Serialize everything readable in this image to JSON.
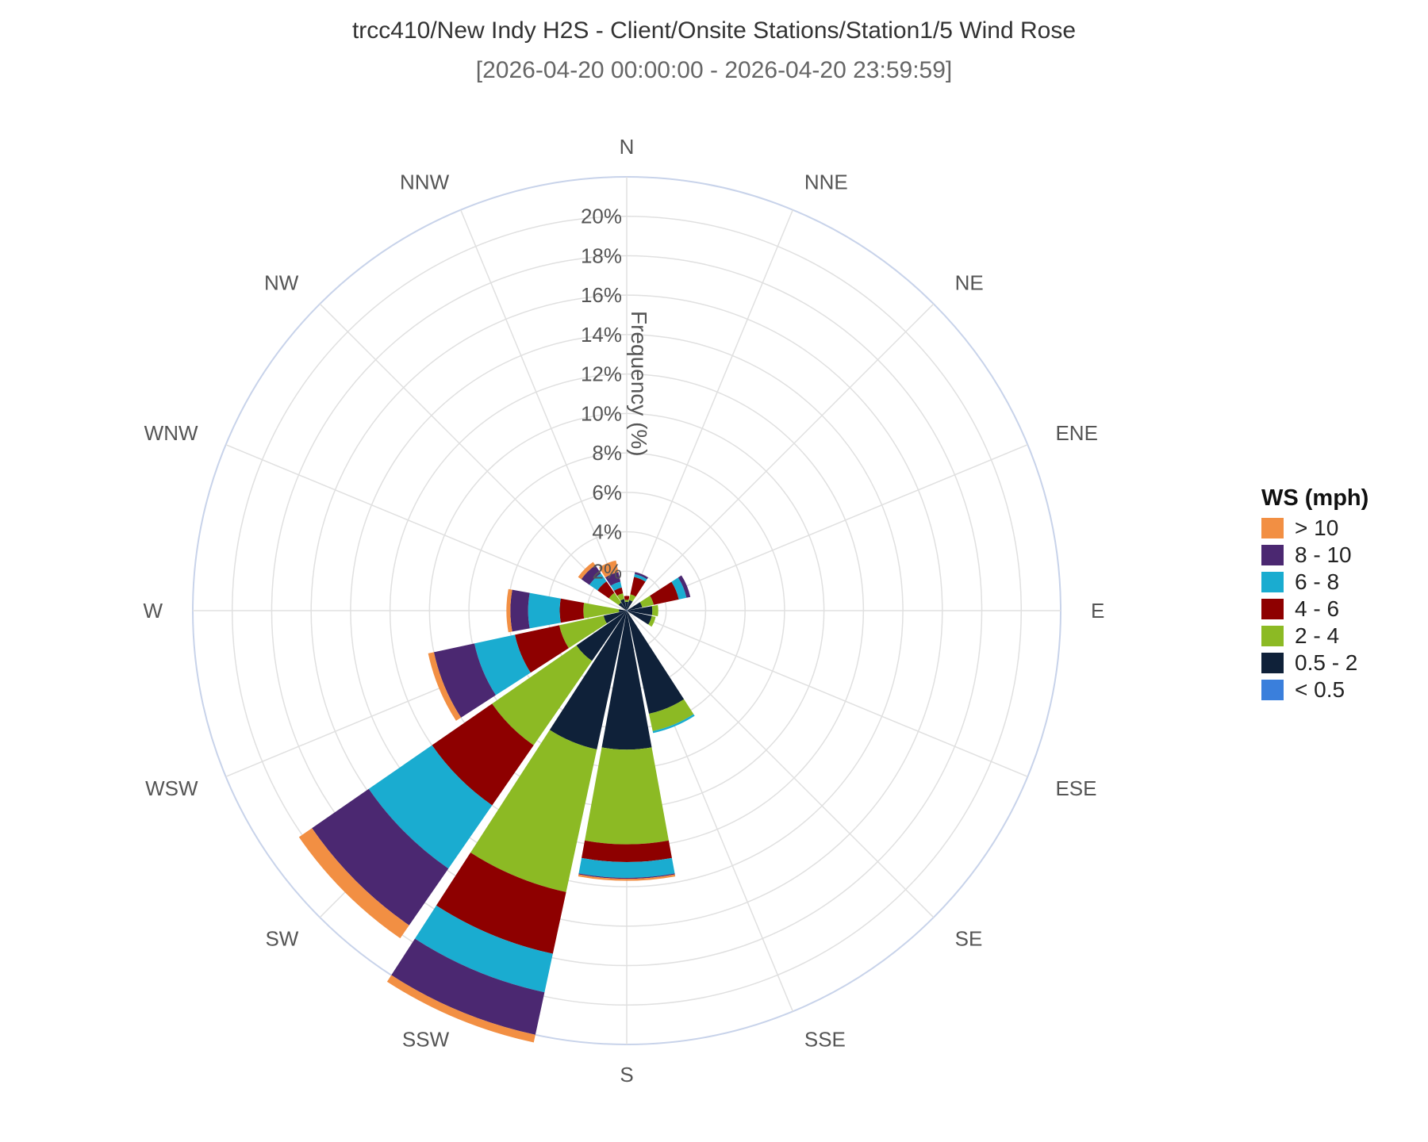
{
  "chart_data": {
    "type": "windrose",
    "title": "trcc410/New Indy H2S - Client/Onsite Stations/Station1/5 Wind Rose",
    "subtitle": "[2026-04-20 00:00:00 - 2026-04-20 23:59:59]",
    "radial_axis_label": "Frequency (%)",
    "radial_ticks": [
      "2%",
      "4%",
      "6%",
      "8%",
      "10%",
      "12%",
      "14%",
      "16%",
      "18%",
      "20%"
    ],
    "radial_max": 22,
    "directions": [
      "N",
      "NNE",
      "NE",
      "ENE",
      "E",
      "ESE",
      "SE",
      "SSE",
      "S",
      "SSW",
      "SW",
      "WSW",
      "W",
      "WNW",
      "NW",
      "NNW"
    ],
    "legend_title": "WS (mph)",
    "legend_position": "right",
    "series": [
      {
        "name": "< 0.5",
        "color": "#3a7fdc",
        "values": [
          0.05,
          0.05,
          0.0,
          0.0,
          0.0,
          0.0,
          0.0,
          0.05,
          0.05,
          0.0,
          0.0,
          0.0,
          0.0,
          0.0,
          0.0,
          0.0
        ]
      },
      {
        "name": "0.5 - 2",
        "color": "#0f2139",
        "values": [
          0.4,
          0.5,
          0.0,
          0.8,
          1.3,
          1.3,
          0.0,
          5.3,
          7.0,
          7.2,
          3.1,
          1.2,
          0.4,
          0.0,
          0.5,
          0.6
        ]
      },
      {
        "name": "2 - 4",
        "color": "#8cba24",
        "values": [
          0.1,
          0.3,
          0.0,
          0.6,
          0.3,
          0.2,
          0.0,
          0.9,
          4.8,
          7.4,
          5.2,
          2.3,
          1.8,
          0.0,
          0.6,
          0.3
        ]
      },
      {
        "name": "4 - 6",
        "color": "#8e0000",
        "values": [
          0.2,
          0.9,
          0.0,
          1.3,
          0.0,
          0.0,
          0.0,
          0.0,
          0.9,
          3.2,
          3.7,
          2.3,
          1.2,
          0.0,
          0.7,
          0.3
        ]
      },
      {
        "name": "6 - 8",
        "color": "#1aacd0",
        "values": [
          0.0,
          0.15,
          0.0,
          0.4,
          0.0,
          0.0,
          0.0,
          0.1,
          0.8,
          2.0,
          3.9,
          2.1,
          1.6,
          0.0,
          0.5,
          0.3
        ]
      },
      {
        "name": "8 - 10",
        "color": "#4b2871",
        "values": [
          0.0,
          0.1,
          0.0,
          0.2,
          0.0,
          0.0,
          0.0,
          0.0,
          0.05,
          2.2,
          3.5,
          2.1,
          0.9,
          0.0,
          0.5,
          0.5
        ]
      },
      {
        "name": "> 10",
        "color": "#f28f43",
        "values": [
          0.0,
          0.0,
          0.0,
          0.0,
          0.0,
          0.0,
          0.0,
          0.0,
          0.1,
          0.4,
          0.8,
          0.3,
          0.2,
          0.0,
          0.2,
          0.6
        ]
      }
    ]
  }
}
